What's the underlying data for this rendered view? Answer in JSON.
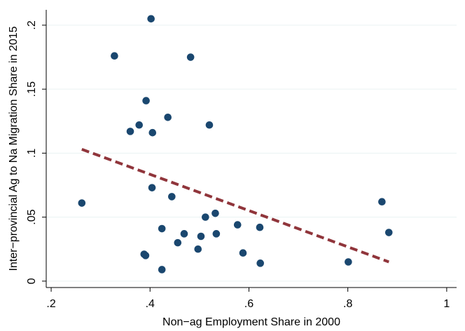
{
  "chart_data": {
    "type": "scatter",
    "xlabel": "Non−ag Employment Share in 2000",
    "ylabel": "Inter−provincial Ag to Na Migration Share in 2015",
    "xlim": [
      0.19,
      1.02
    ],
    "ylim": [
      -0.005,
      0.212
    ],
    "x_ticks": [
      0.2,
      0.4,
      0.6,
      0.8,
      1.0
    ],
    "x_tick_labels": [
      ".2",
      ".4",
      ".6",
      ".8",
      "1"
    ],
    "y_ticks": [
      0,
      0.05,
      0.1,
      0.15,
      0.2
    ],
    "y_tick_labels": [
      "0",
      ".05",
      ".1",
      ".15",
      ".2"
    ],
    "grid": "horizontal",
    "points": [
      {
        "x": 0.262,
        "y": 0.061
      },
      {
        "x": 0.328,
        "y": 0.176
      },
      {
        "x": 0.36,
        "y": 0.117
      },
      {
        "x": 0.378,
        "y": 0.122
      },
      {
        "x": 0.388,
        "y": 0.021
      },
      {
        "x": 0.391,
        "y": 0.02
      },
      {
        "x": 0.392,
        "y": 0.141
      },
      {
        "x": 0.402,
        "y": 0.205
      },
      {
        "x": 0.404,
        "y": 0.073
      },
      {
        "x": 0.405,
        "y": 0.116
      },
      {
        "x": 0.424,
        "y": 0.041
      },
      {
        "x": 0.424,
        "y": 0.009
      },
      {
        "x": 0.436,
        "y": 0.128
      },
      {
        "x": 0.444,
        "y": 0.066
      },
      {
        "x": 0.456,
        "y": 0.03
      },
      {
        "x": 0.469,
        "y": 0.037
      },
      {
        "x": 0.482,
        "y": 0.175
      },
      {
        "x": 0.497,
        "y": 0.025
      },
      {
        "x": 0.503,
        "y": 0.035
      },
      {
        "x": 0.512,
        "y": 0.05
      },
      {
        "x": 0.52,
        "y": 0.122
      },
      {
        "x": 0.532,
        "y": 0.053
      },
      {
        "x": 0.534,
        "y": 0.037
      },
      {
        "x": 0.577,
        "y": 0.044
      },
      {
        "x": 0.588,
        "y": 0.022
      },
      {
        "x": 0.622,
        "y": 0.042
      },
      {
        "x": 0.623,
        "y": 0.014
      },
      {
        "x": 0.801,
        "y": 0.015
      },
      {
        "x": 0.869,
        "y": 0.062
      },
      {
        "x": 0.883,
        "y": 0.038
      }
    ],
    "fit_line": {
      "x": [
        0.262,
        0.883
      ],
      "y": [
        0.103,
        0.015
      ]
    },
    "colors": {
      "points": "#1a476f",
      "fit_line": "#90353b",
      "grid": "#eaf2f3",
      "axis": "#000000"
    }
  }
}
